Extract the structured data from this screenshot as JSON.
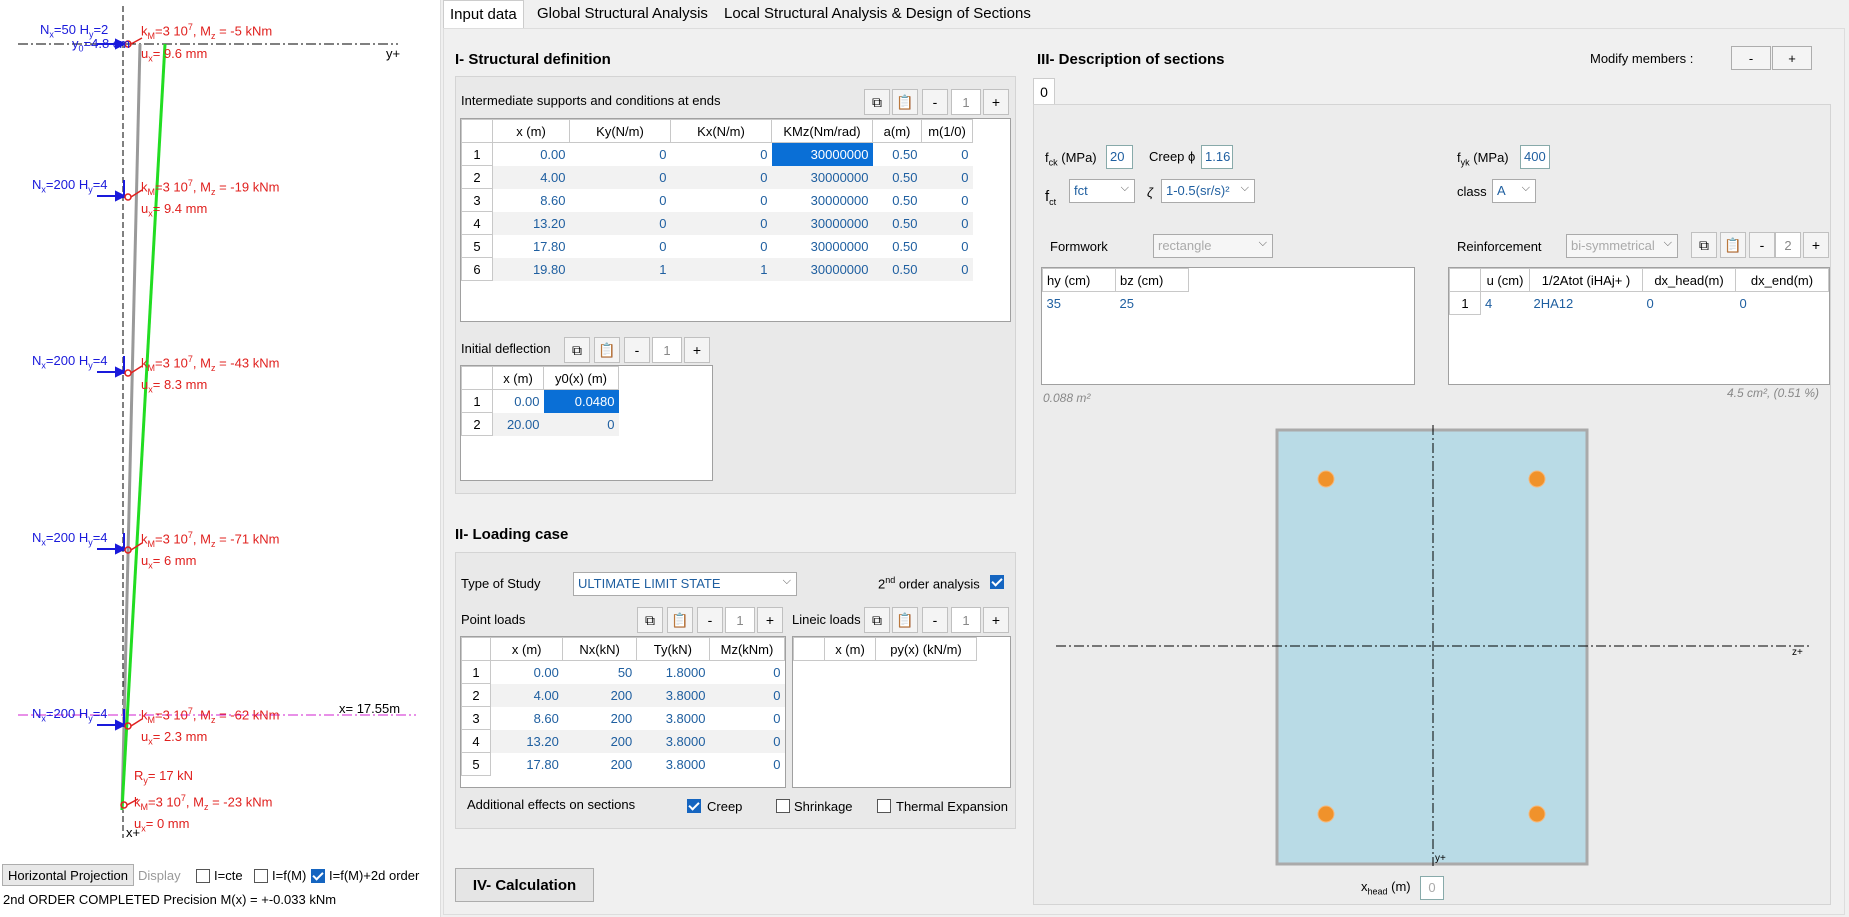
{
  "tabs": [
    "Input data",
    "Global Structural Analysis",
    "Local Structural Analysis & Design of Sections"
  ],
  "diagram": {
    "top_axis_label": "y+",
    "bottom_axis_label": "x+",
    "cut_label": "x= 17.55m",
    "node_loads": [
      {
        "n": "N",
        "n_sub": "x",
        "n_val": "=50",
        "h": "H",
        "h_sub": "y",
        "h_val": "=2"
      },
      {
        "n": "N",
        "n_sub": "x",
        "n_val": "=200",
        "h": "H",
        "h_sub": "y",
        "h_val": "=4"
      },
      {
        "n": "N",
        "n_sub": "x",
        "n_val": "=200",
        "h": "H",
        "h_sub": "y",
        "h_val": "=4"
      },
      {
        "n": "N",
        "n_sub": "x",
        "n_val": "=200",
        "h": "H",
        "h_sub": "y",
        "h_val": "=4"
      },
      {
        "n": "N",
        "n_sub": "x",
        "n_val": "=200",
        "h": "H",
        "h_sub": "y",
        "h_val": "=4"
      }
    ],
    "y0_label": "y",
    "y0_sub": "0",
    "y0_val": "=4.8 cm",
    "moments": [
      {
        "km": "k",
        "km_sub": "M",
        "km_val": "=3 10",
        "km_exp": "7",
        "mz": ", M",
        "mz_sub": "z",
        "mz_val": " = -5 kNm",
        "ux": "u",
        "ux_sub": "x",
        "ux_val": "= 9.6 mm"
      },
      {
        "km": "k",
        "km_sub": "M",
        "km_val": "=3 10",
        "km_exp": "7",
        "mz": ", M",
        "mz_sub": "z",
        "mz_val": " = -19 kNm",
        "ux": "u",
        "ux_sub": "x",
        "ux_val": "= 9.4 mm"
      },
      {
        "km": "k",
        "km_sub": "M",
        "km_val": "=3 10",
        "km_exp": "7",
        "mz": ", M",
        "mz_sub": "z",
        "mz_val": " = -43 kNm",
        "ux": "u",
        "ux_sub": "x",
        "ux_val": "= 8.3 mm"
      },
      {
        "km": "k",
        "km_sub": "M",
        "km_val": "=3 10",
        "km_exp": "7",
        "mz": ", M",
        "mz_sub": "z",
        "mz_val": " = -71 kNm",
        "ux": "u",
        "ux_sub": "x",
        "ux_val": "= 6 mm"
      },
      {
        "km": "k",
        "km_sub": "M",
        "km_val": "=3 10",
        "km_exp": "7",
        "mz": ", M",
        "mz_sub": "z",
        "mz_val": " = -62 kNm",
        "ux": "u",
        "ux_sub": "x",
        "ux_val": "= 2.3 mm"
      },
      {
        "km": "k",
        "km_sub": "M",
        "km_val": "=3 10",
        "km_exp": "7",
        "mz": ", M",
        "mz_sub": "z",
        "mz_val": " = -23 kNm",
        "ux": "u",
        "ux_sub": "x",
        "ux_val": "= 0 mm"
      }
    ],
    "reaction": {
      "r": "R",
      "r_sub": "y",
      "r_val": "= 17 kN"
    }
  },
  "bottom_left": {
    "projection_button": "Horizontal Projection",
    "display_label": "Display",
    "opt1": "I=cte",
    "opt2": "I=f(M)",
    "opt3": "I=f(M)+2d order",
    "status": "2nd ORDER COMPLETED  Precision M(x) = +-0.033 kNm"
  },
  "section1": {
    "title": "I- Structural definition",
    "supports_label": "Intermediate supports and conditions at ends",
    "supports_count": "1",
    "supports_headers": [
      "",
      "x (m)",
      "Ky(N/m)",
      "Kx(N/m)",
      "KMz(Nm/rad)",
      "a(m)",
      "m(1/0)"
    ],
    "supports_rows": [
      [
        "1",
        "0.00",
        "0",
        "0",
        "30000000",
        "0.50",
        "0"
      ],
      [
        "2",
        "4.00",
        "0",
        "0",
        "30000000",
        "0.50",
        "0"
      ],
      [
        "3",
        "8.60",
        "0",
        "0",
        "30000000",
        "0.50",
        "0"
      ],
      [
        "4",
        "13.20",
        "0",
        "0",
        "30000000",
        "0.50",
        "0"
      ],
      [
        "5",
        "17.80",
        "0",
        "0",
        "30000000",
        "0.50",
        "0"
      ],
      [
        "6",
        "19.80",
        "1",
        "1",
        "30000000",
        "0.50",
        "0"
      ]
    ],
    "deflection_label": "Initial deflection",
    "deflection_count": "1",
    "deflection_headers": [
      "",
      "x (m)",
      "y0(x) (m)"
    ],
    "deflection_rows": [
      [
        "1",
        "0.00",
        "0.0480"
      ],
      [
        "2",
        "20.00",
        "0"
      ]
    ]
  },
  "section2": {
    "title": "II- Loading case",
    "study_label": "Type of Study",
    "study_value": "ULTIMATE LIMIT STATE",
    "second_order_label": "2",
    "second_order_sup": "nd",
    "second_order_rest": " order analysis",
    "point_loads_label": "Point loads",
    "point_count": "1",
    "point_headers": [
      "",
      "x (m)",
      "Nx(kN)",
      "Ty(kN)",
      "Mz(kNm)"
    ],
    "point_rows": [
      [
        "1",
        "0.00",
        "50",
        "1.8000",
        "0"
      ],
      [
        "2",
        "4.00",
        "200",
        "3.8000",
        "0"
      ],
      [
        "3",
        "8.60",
        "200",
        "3.8000",
        "0"
      ],
      [
        "4",
        "13.20",
        "200",
        "3.8000",
        "0"
      ],
      [
        "5",
        "17.80",
        "200",
        "3.8000",
        "0"
      ]
    ],
    "lineic_label": "Lineic loads",
    "lineic_count": "1",
    "lineic_headers": [
      "",
      "x (m)",
      "py(x) (kN/m)"
    ],
    "effects_label": "Additional effects on sections",
    "creep": "Creep",
    "shrinkage": "Shrinkage",
    "thermal": "Thermal Expansion"
  },
  "section3": {
    "title": "III- Description of sections",
    "modify_label": "Modify members :",
    "minus": "-",
    "plus": "+",
    "member_tab": "0",
    "fck_label": "f",
    "fck_sub": "ck",
    "fck_unit": " (MPa)",
    "fck_value": "20",
    "creep_label": "Creep ϕ",
    "creep_value": "1.16",
    "fct_label": "f",
    "fct_sub": "ct",
    "fct_value": "fct",
    "zeta_label": "ζ",
    "zeta_value": "1-0.5(sr/s)²",
    "fyk_label": "f",
    "fyk_sub": "yk",
    "fyk_unit": " (MPa)",
    "fyk_value": "400",
    "class_label": "class",
    "class_value": "A",
    "formwork_label": "Formwork",
    "formwork_value": "rectangle",
    "formwork_headers": [
      "hy (cm)",
      "bz (cm)"
    ],
    "formwork_row": [
      "35",
      "25"
    ],
    "area_note": "0.088 m²",
    "reinf_label": "Reinforcement",
    "reinf_value": "bi-symmetrical",
    "reinf_count": "2",
    "reinf_headers": [
      "",
      "u (cm)",
      "1/2Atot (iHAj+ )",
      "dx_head(m)",
      "dx_end(m)"
    ],
    "reinf_row": [
      "1",
      "4",
      "2HA12",
      "0",
      "0"
    ],
    "reinf_note": "4.5 cm², (0.51 %)",
    "axis_z": "z+",
    "axis_y": "y+",
    "xhead_label": "x",
    "xhead_sub": "head",
    "xhead_unit": " (m)",
    "xhead_value": "0"
  },
  "section4": {
    "calc_button": "IV- Calculation"
  },
  "colors": {
    "accent": "#0a6fd6",
    "blue_text": "#1a1adb",
    "red_text": "#e0201e",
    "deformed": "#22dd22",
    "section_fill": "#b9dbe6",
    "rebar": "#f0922b"
  }
}
